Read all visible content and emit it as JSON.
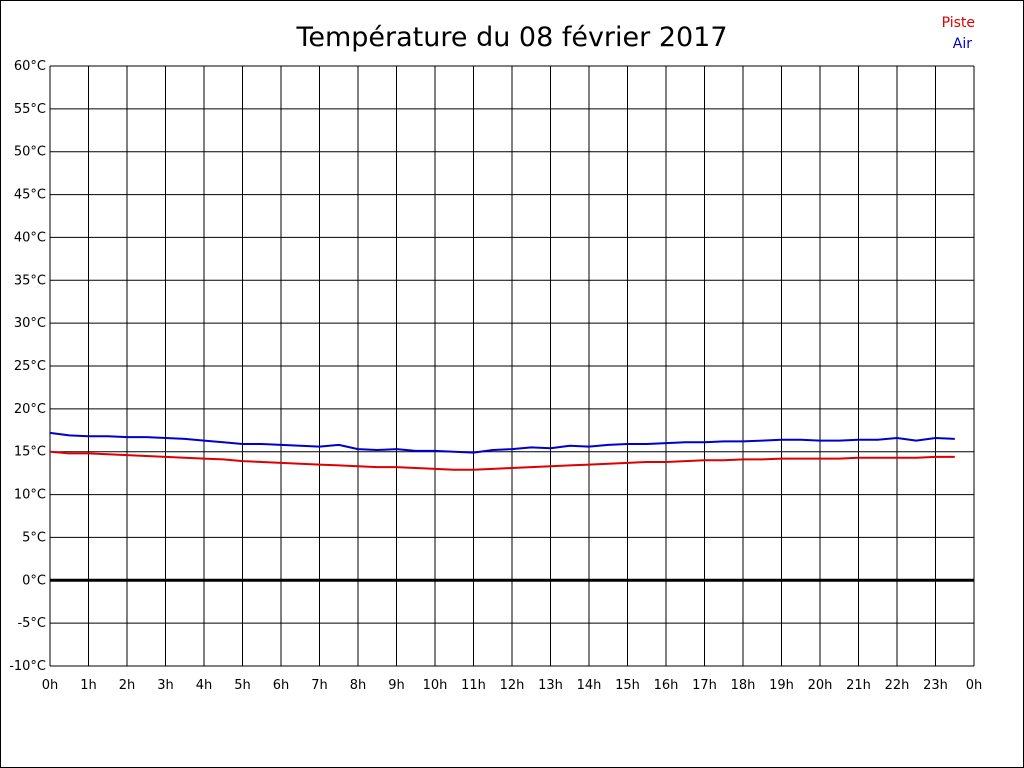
{
  "chart_data": {
    "type": "line",
    "title": "Température du 08 février 2017",
    "xlabel": "",
    "ylabel": "",
    "x_ticks": [
      "0h",
      "1h",
      "2h",
      "3h",
      "4h",
      "5h",
      "6h",
      "7h",
      "8h",
      "9h",
      "10h",
      "11h",
      "12h",
      "13h",
      "14h",
      "15h",
      "16h",
      "17h",
      "18h",
      "19h",
      "20h",
      "21h",
      "22h",
      "23h",
      "0h"
    ],
    "y_ticks": [
      "60°C",
      "55°C",
      "50°C",
      "45°C",
      "40°C",
      "35°C",
      "30°C",
      "25°C",
      "20°C",
      "15°C",
      "10°C",
      "5°C",
      "0°C",
      "-5°C",
      "-10°C"
    ],
    "xlim": [
      0,
      24
    ],
    "ylim": [
      -10,
      60
    ],
    "grid": true,
    "legend_position": "top-right",
    "x": [
      0,
      0.5,
      1,
      1.5,
      2,
      2.5,
      3,
      3.5,
      4,
      4.5,
      5,
      5.5,
      6,
      6.5,
      7,
      7.5,
      8,
      8.5,
      9,
      9.5,
      10,
      10.5,
      11,
      11.5,
      12,
      12.5,
      13,
      13.5,
      14,
      14.5,
      15,
      15.5,
      16,
      16.5,
      17,
      17.5,
      18,
      18.5,
      19,
      19.5,
      20,
      20.5,
      21,
      21.5,
      22,
      22.5,
      23,
      23.5
    ],
    "series": [
      {
        "name": "Piste",
        "color": "#dd0000",
        "values": [
          15.0,
          14.8,
          14.8,
          14.7,
          14.6,
          14.5,
          14.4,
          14.3,
          14.2,
          14.1,
          13.9,
          13.8,
          13.7,
          13.6,
          13.5,
          13.4,
          13.3,
          13.2,
          13.2,
          13.1,
          13.0,
          12.9,
          12.9,
          13.0,
          13.1,
          13.2,
          13.3,
          13.4,
          13.5,
          13.6,
          13.7,
          13.8,
          13.8,
          13.9,
          14.0,
          14.0,
          14.1,
          14.1,
          14.2,
          14.2,
          14.2,
          14.2,
          14.3,
          14.3,
          14.3,
          14.3,
          14.4,
          14.4
        ]
      },
      {
        "name": "Air",
        "color": "#0000cc",
        "values": [
          17.2,
          16.9,
          16.8,
          16.8,
          16.7,
          16.7,
          16.6,
          16.5,
          16.3,
          16.1,
          15.9,
          15.9,
          15.8,
          15.7,
          15.6,
          15.8,
          15.3,
          15.2,
          15.3,
          15.1,
          15.1,
          15.0,
          14.9,
          15.2,
          15.3,
          15.5,
          15.4,
          15.7,
          15.6,
          15.8,
          15.9,
          15.9,
          16.0,
          16.1,
          16.1,
          16.2,
          16.2,
          16.3,
          16.4,
          16.4,
          16.3,
          16.3,
          16.4,
          16.4,
          16.6,
          16.3,
          16.6,
          16.5
        ]
      }
    ],
    "zero_line": 0
  }
}
